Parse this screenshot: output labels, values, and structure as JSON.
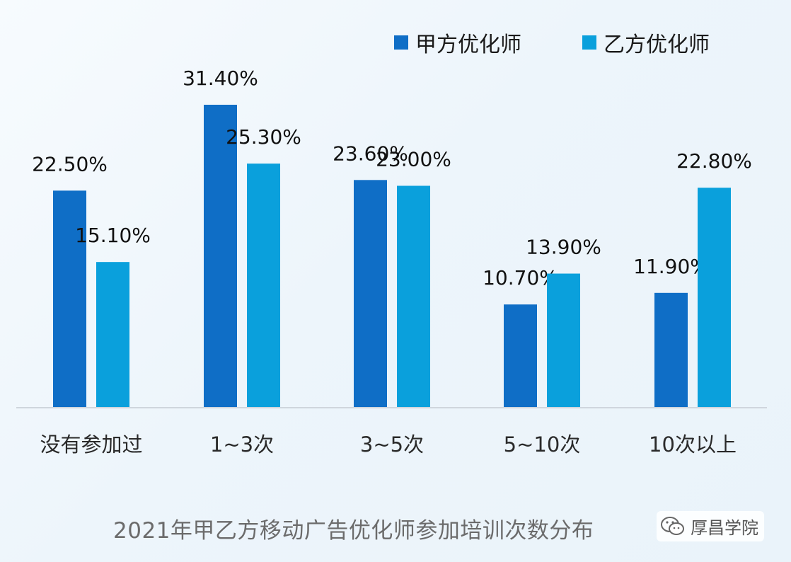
{
  "chart_data": {
    "type": "bar",
    "categories": [
      "没有参加过",
      "1~3次",
      "3~5次",
      "5~10次",
      "10次以上"
    ],
    "series": [
      {
        "name": "甲方优化师",
        "values": [
          22.5,
          31.4,
          23.6,
          10.7,
          11.9
        ],
        "labels": [
          "22.50%",
          "31.40%",
          "23.60%",
          "10.70%",
          "11.90%"
        ],
        "color": "#0f6ec6"
      },
      {
        "name": "乙方优化师",
        "values": [
          15.1,
          25.3,
          23.0,
          13.9,
          22.8
        ],
        "labels": [
          "15.10%",
          "25.30%",
          "23.00%",
          "13.90%",
          "22.80%"
        ],
        "color": "#0aa0dc"
      }
    ],
    "title": "2021年甲乙方移动广告优化师参加培训次数分布",
    "ylim": [
      0,
      31.4
    ],
    "grid": false,
    "legend": "top-right"
  },
  "watermark": {
    "text": "厚昌学院",
    "icon": "wechat-icon"
  }
}
